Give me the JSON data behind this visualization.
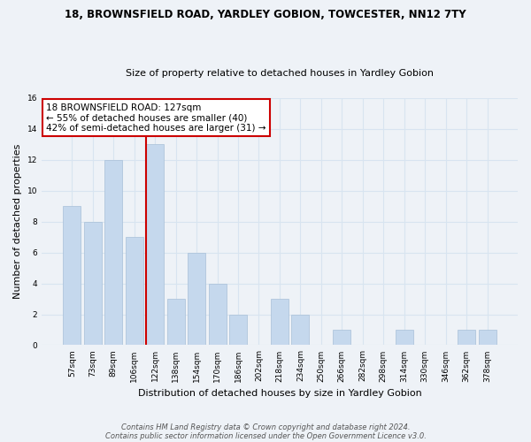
{
  "title1": "18, BROWNSFIELD ROAD, YARDLEY GOBION, TOWCESTER, NN12 7TY",
  "title2": "Size of property relative to detached houses in Yardley Gobion",
  "xlabel": "Distribution of detached houses by size in Yardley Gobion",
  "ylabel": "Number of detached properties",
  "bar_labels": [
    "57sqm",
    "73sqm",
    "89sqm",
    "106sqm",
    "122sqm",
    "138sqm",
    "154sqm",
    "170sqm",
    "186sqm",
    "202sqm",
    "218sqm",
    "234sqm",
    "250sqm",
    "266sqm",
    "282sqm",
    "298sqm",
    "314sqm",
    "330sqm",
    "346sqm",
    "362sqm",
    "378sqm"
  ],
  "bar_values": [
    9,
    8,
    12,
    7,
    13,
    3,
    6,
    4,
    2,
    0,
    3,
    2,
    0,
    1,
    0,
    0,
    1,
    0,
    0,
    1,
    1
  ],
  "bar_color": "#c5d8ed",
  "bar_edgecolor": "#a8c0d8",
  "highlight_line_color": "#cc0000",
  "highlight_line_index": 4,
  "annotation_title": "18 BROWNSFIELD ROAD: 127sqm",
  "annotation_line1": "← 55% of detached houses are smaller (40)",
  "annotation_line2": "42% of semi-detached houses are larger (31) →",
  "annotation_box_facecolor": "#ffffff",
  "annotation_box_edgecolor": "#cc0000",
  "ylim": [
    0,
    16
  ],
  "yticks": [
    0,
    2,
    4,
    6,
    8,
    10,
    12,
    14,
    16
  ],
  "footer1": "Contains HM Land Registry data © Crown copyright and database right 2024.",
  "footer2": "Contains public sector information licensed under the Open Government Licence v3.0.",
  "background_color": "#eef2f7",
  "grid_color": "#d8e4f0",
  "title1_fontsize": 8.5,
  "title2_fontsize": 8,
  "ylabel_fontsize": 8,
  "xlabel_fontsize": 8,
  "tick_fontsize": 6.5,
  "annotation_fontsize": 7.5,
  "footer_fontsize": 6
}
